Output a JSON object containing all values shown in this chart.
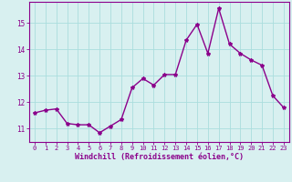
{
  "x": [
    0,
    1,
    2,
    3,
    4,
    5,
    6,
    7,
    8,
    9,
    10,
    11,
    12,
    13,
    14,
    15,
    16,
    17,
    18,
    19,
    20,
    21,
    22,
    23
  ],
  "y": [
    11.6,
    11.7,
    11.75,
    11.2,
    11.15,
    11.15,
    10.85,
    11.1,
    11.35,
    12.55,
    12.9,
    12.65,
    13.05,
    13.05,
    14.35,
    14.95,
    13.85,
    15.55,
    14.2,
    13.85,
    13.6,
    13.4,
    12.25,
    11.8
  ],
  "line_color": "#8B008B",
  "marker": "*",
  "marker_size": 3,
  "bg_color": "#d8f0f0",
  "grid_color": "#aadddd",
  "xlabel": "Windchill (Refroidissement éolien,°C)",
  "xlabel_color": "#8B008B",
  "tick_color": "#8B008B",
  "ylim": [
    10.5,
    15.8
  ],
  "xlim": [
    -0.5,
    23.5
  ],
  "yticks": [
    11,
    12,
    13,
    14,
    15
  ],
  "xticks": [
    0,
    1,
    2,
    3,
    4,
    5,
    6,
    7,
    8,
    9,
    10,
    11,
    12,
    13,
    14,
    15,
    16,
    17,
    18,
    19,
    20,
    21,
    22,
    23
  ],
  "spine_color": "#8B008B",
  "line_width": 1.0
}
